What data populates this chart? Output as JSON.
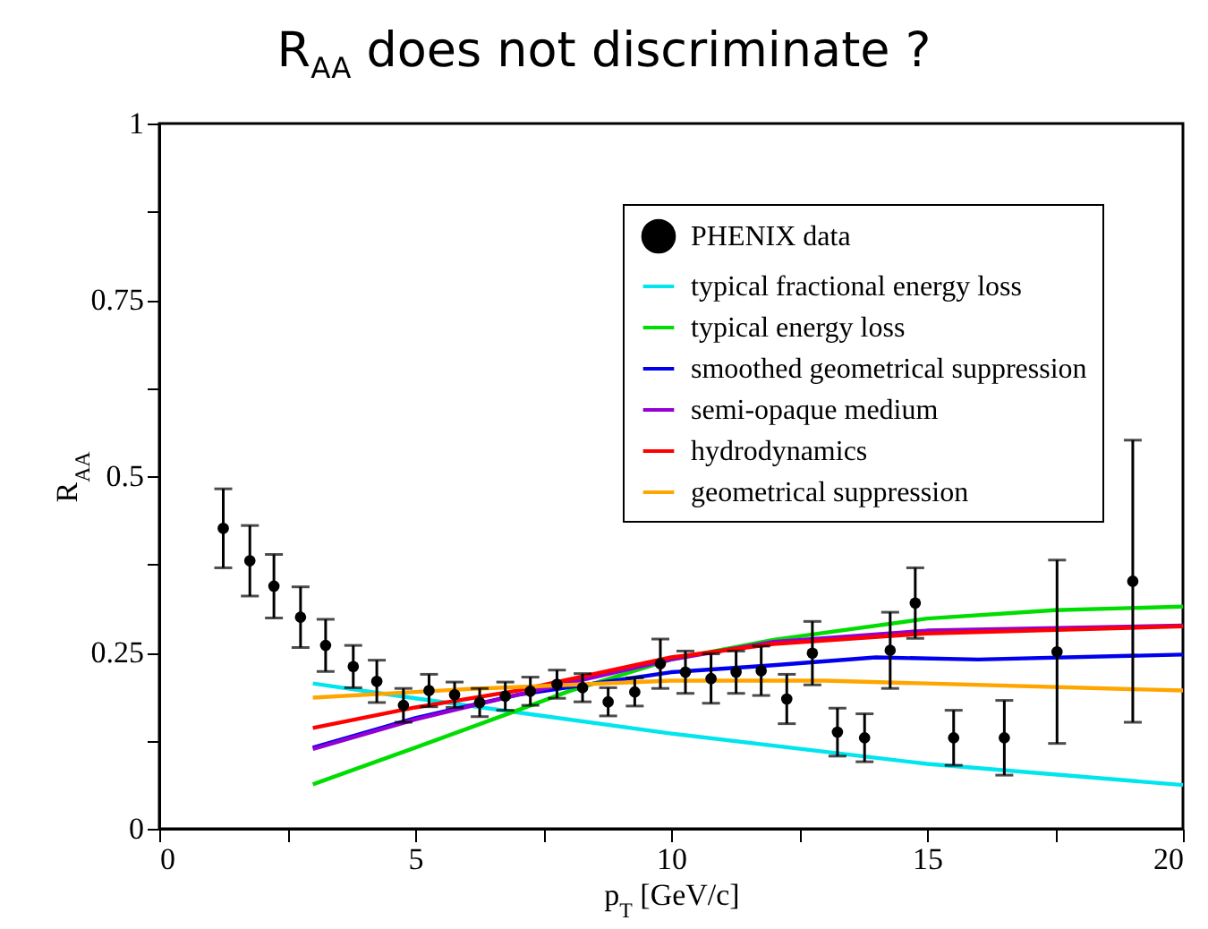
{
  "chart_data": {
    "type": "line",
    "title": "R$_{AA}$ does not discriminate ?",
    "xlabel": "p$_{T}$ [GeV/c]",
    "ylabel": "R$_{AA}$",
    "xlim": [
      0,
      20
    ],
    "ylim": [
      0,
      1
    ],
    "xticks": [
      0,
      {
        "value": 2.5,
        "label": null
      },
      5,
      {
        "value": 7.5,
        "label": null
      },
      10,
      {
        "value": 12.5,
        "label": null
      },
      15,
      {
        "value": 17.5,
        "label": null
      },
      20
    ],
    "yticks": [
      0,
      {
        "value": 0.125,
        "label": null
      },
      0.25,
      {
        "value": 0.375,
        "label": null
      },
      0.5,
      {
        "value": 0.625,
        "label": null
      },
      0.75,
      {
        "value": 0.875,
        "label": null
      },
      1
    ],
    "grid": false,
    "legend": "top right",
    "line_style": "solid",
    "series": [
      {
        "name": "PHENIX data",
        "type": "scatter",
        "marker": "circle",
        "color": "#000000",
        "x": [
          1.25,
          1.77,
          2.24,
          2.76,
          3.25,
          3.79,
          4.25,
          4.77,
          5.27,
          5.77,
          6.26,
          6.76,
          7.25,
          7.77,
          8.27,
          8.77,
          9.29,
          9.79,
          10.28,
          10.78,
          11.27,
          11.76,
          12.26,
          12.76,
          13.25,
          13.78,
          14.28,
          14.77,
          15.52,
          16.51,
          17.54,
          19.02
        ],
        "values": [
          0.426,
          0.38,
          0.344,
          0.3,
          0.26,
          0.23,
          0.209,
          0.175,
          0.196,
          0.19,
          0.179,
          0.188,
          0.195,
          0.205,
          0.2,
          0.18,
          0.194,
          0.234,
          0.222,
          0.213,
          0.222,
          0.224,
          0.184,
          0.249,
          0.137,
          0.129,
          0.253,
          0.32,
          0.129,
          0.129,
          0.251,
          0.351
        ],
        "errors": [
          0.056,
          0.05,
          0.045,
          0.043,
          0.037,
          0.03,
          0.03,
          0.024,
          0.023,
          0.018,
          0.02,
          0.02,
          0.02,
          0.02,
          0.02,
          0.02,
          0.02,
          0.035,
          0.03,
          0.035,
          0.03,
          0.035,
          0.035,
          0.045,
          0.034,
          0.034,
          0.054,
          0.05,
          0.039,
          0.053,
          0.13,
          0.2
        ]
      },
      {
        "name": "typical fractional energy loss",
        "color": "#00e5ee",
        "x": [
          3,
          5,
          7,
          10,
          15,
          20
        ],
        "values": [
          0.206,
          0.185,
          0.165,
          0.135,
          0.092,
          0.062
        ]
      },
      {
        "name": "typical energy loss",
        "color": "#00dd00",
        "x": [
          3,
          5,
          7,
          8,
          10,
          12,
          15,
          17.5,
          20
        ],
        "values": [
          0.063,
          0.115,
          0.168,
          0.195,
          0.24,
          0.268,
          0.298,
          0.31,
          0.315
        ]
      },
      {
        "name": "smoothed geometrical suppression",
        "color": "#0000ee",
        "x": [
          3,
          5,
          7,
          10,
          12,
          14,
          16,
          20
        ],
        "values": [
          0.115,
          0.157,
          0.19,
          0.222,
          0.232,
          0.243,
          0.24,
          0.247
        ]
      },
      {
        "name": "semi-opaque medium",
        "color": "#9400d3",
        "x": [
          3,
          5,
          7,
          10,
          12,
          15,
          20
        ],
        "values": [
          0.113,
          0.155,
          0.19,
          0.24,
          0.265,
          0.281,
          0.288
        ]
      },
      {
        "name": "hydrodynamics",
        "color": "#ff0000",
        "x": [
          3,
          5,
          7,
          10,
          12,
          15,
          20
        ],
        "values": [
          0.143,
          0.172,
          0.196,
          0.243,
          0.262,
          0.277,
          0.287
        ]
      },
      {
        "name": "geometrical suppression",
        "color": "#ffa500",
        "x": [
          3,
          6,
          10,
          13,
          15,
          20
        ],
        "values": [
          0.186,
          0.198,
          0.21,
          0.21,
          0.206,
          0.196
        ]
      }
    ]
  }
}
